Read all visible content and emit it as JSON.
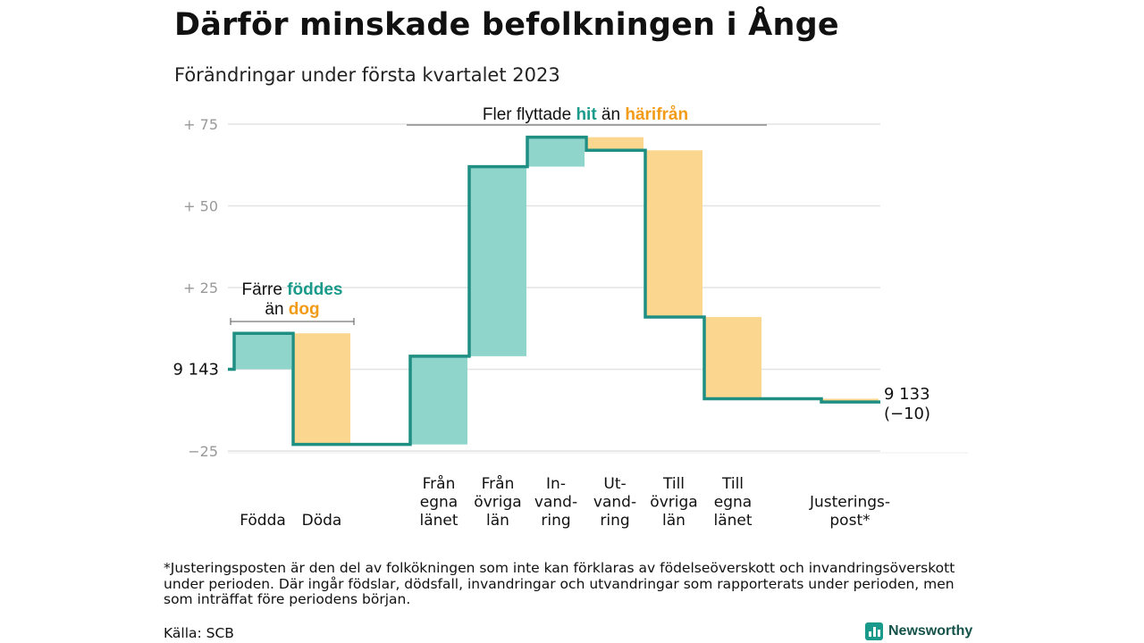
{
  "title": "Därför minskade befolkningen i Ånge",
  "subtitle": "Förändringar under första kvartalet 2023",
  "colors": {
    "increase": "#8fd5cc",
    "decrease": "#fbd68e",
    "line": "#1f8f83",
    "accent_teal": "#1a9a8a",
    "accent_orange": "#f29b17",
    "grid": "#e3e3e3"
  },
  "chart_data": {
    "type": "waterfall",
    "ylim": [
      -25,
      75
    ],
    "y_ticks": [
      75,
      50,
      25,
      -25
    ],
    "y_tick_labels": [
      "+ 75",
      "+ 50",
      "+ 25",
      "−25"
    ],
    "start_value": 9143,
    "start_label": "9 143",
    "end_label_line1": "9 133",
    "end_label_line2": "(−10)",
    "total_change": -10,
    "steps": [
      {
        "label": [
          "Födda"
        ],
        "change": 11
      },
      {
        "label": [
          "Döda"
        ],
        "change": -34
      },
      {
        "label": [
          "Från",
          "egna",
          "länet"
        ],
        "change": 27
      },
      {
        "label": [
          "Från",
          "övriga",
          "län"
        ],
        "change": 58
      },
      {
        "label": [
          "In-",
          "vand-",
          "ring"
        ],
        "change": 9
      },
      {
        "label": [
          "Ut-",
          "vand-",
          "ring"
        ],
        "change": -4
      },
      {
        "label": [
          "Till",
          "övriga",
          "län"
        ],
        "change": -51
      },
      {
        "label": [
          "Till",
          "egna",
          "länet"
        ],
        "change": -25
      },
      {
        "label": [
          "Justerings-",
          "post*"
        ],
        "change": -1
      }
    ],
    "annotations": [
      {
        "parts": [
          [
            "Färre ",
            "normal"
          ],
          [
            "föddes",
            "hit"
          ]
        ],
        "parts2": [
          [
            "än ",
            "normal"
          ],
          [
            "dog",
            "away"
          ]
        ]
      },
      {
        "parts": [
          [
            "Fler flyttade ",
            "normal"
          ],
          [
            "hit",
            "hit"
          ],
          [
            " än ",
            "normal"
          ],
          [
            "härifrån",
            "away"
          ]
        ]
      }
    ]
  },
  "footnote": "*Justeringsposten är den del av folkökningen som inte kan förklaras av födelseöverskott och invandringsöverskott under perioden. Där ingår födslar, dödsfall, invandringar och utvandringar som rapporterats under perioden, men som inträffat före periodens början.",
  "source": "Källa: SCB",
  "brand": "Newsworthy"
}
